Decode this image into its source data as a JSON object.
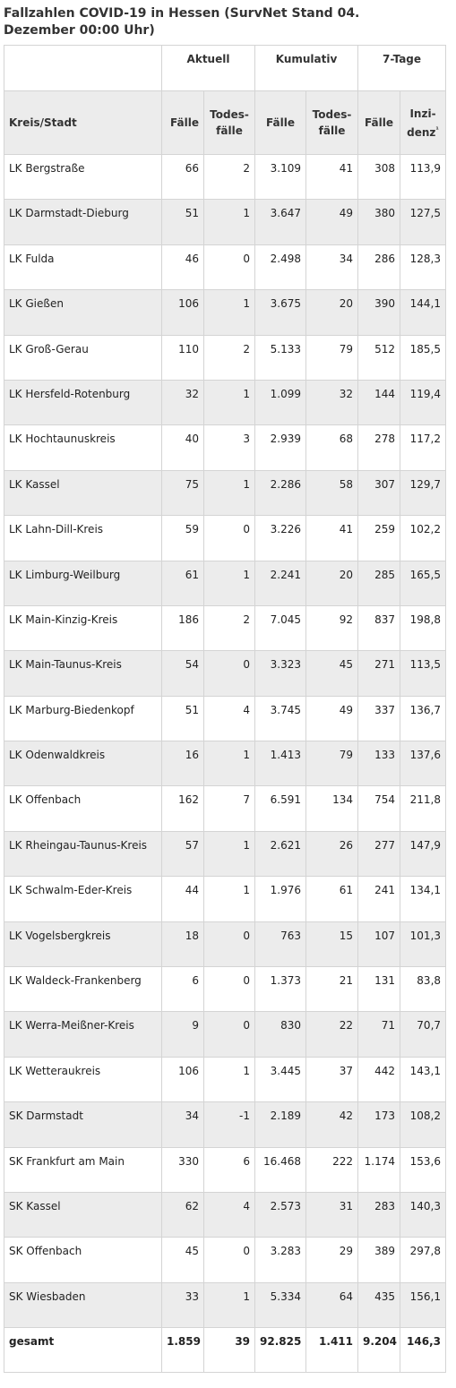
{
  "title": "Fallzahlen COVID-19 in Hessen (SurvNet Stand 04. Dezember 00:00 Uhr)",
  "groups": {
    "aktuell": "Aktuell",
    "kumulativ": "Kumulativ",
    "sieben_tage": "7-Tage"
  },
  "columns": {
    "kreis": "Kreis/Stadt",
    "faelle": "Fälle",
    "todes_1": "Todes-",
    "todes_2": "fälle",
    "inzi_1": "Inzi-",
    "inzi_2": "denz",
    "inzi_sup": "¹"
  },
  "rows": [
    [
      "LK Bergstraße",
      "66",
      "2",
      "3.109",
      "41",
      "308",
      "113,9"
    ],
    [
      "LK Darmstadt-Dieburg",
      "51",
      "1",
      "3.647",
      "49",
      "380",
      "127,5"
    ],
    [
      "LK Fulda",
      "46",
      "0",
      "2.498",
      "34",
      "286",
      "128,3"
    ],
    [
      "LK Gießen",
      "106",
      "1",
      "3.675",
      "20",
      "390",
      "144,1"
    ],
    [
      "LK Groß-Gerau",
      "110",
      "2",
      "5.133",
      "79",
      "512",
      "185,5"
    ],
    [
      "LK Hersfeld-Rotenburg",
      "32",
      "1",
      "1.099",
      "32",
      "144",
      "119,4"
    ],
    [
      "LK Hochtaunuskreis",
      "40",
      "3",
      "2.939",
      "68",
      "278",
      "117,2"
    ],
    [
      "LK Kassel",
      "75",
      "1",
      "2.286",
      "58",
      "307",
      "129,7"
    ],
    [
      "LK Lahn-Dill-Kreis",
      "59",
      "0",
      "3.226",
      "41",
      "259",
      "102,2"
    ],
    [
      "LK Limburg-Weilburg",
      "61",
      "1",
      "2.241",
      "20",
      "285",
      "165,5"
    ],
    [
      "LK Main-Kinzig-Kreis",
      "186",
      "2",
      "7.045",
      "92",
      "837",
      "198,8"
    ],
    [
      "LK Main-Taunus-Kreis",
      "54",
      "0",
      "3.323",
      "45",
      "271",
      "113,5"
    ],
    [
      "LK Marburg-Biedenkopf",
      "51",
      "4",
      "3.745",
      "49",
      "337",
      "136,7"
    ],
    [
      "LK Odenwaldkreis",
      "16",
      "1",
      "1.413",
      "79",
      "133",
      "137,6"
    ],
    [
      "LK Offenbach",
      "162",
      "7",
      "6.591",
      "134",
      "754",
      "211,8"
    ],
    [
      "LK Rheingau-Taunus-Kreis",
      "57",
      "1",
      "2.621",
      "26",
      "277",
      "147,9"
    ],
    [
      "LK Schwalm-Eder-Kreis",
      "44",
      "1",
      "1.976",
      "61",
      "241",
      "134,1"
    ],
    [
      "LK Vogelsbergkreis",
      "18",
      "0",
      "763",
      "15",
      "107",
      "101,3"
    ],
    [
      "LK Waldeck-Frankenberg",
      "6",
      "0",
      "1.373",
      "21",
      "131",
      "83,8"
    ],
    [
      "LK Werra-Meißner-Kreis",
      "9",
      "0",
      "830",
      "22",
      "71",
      "70,7"
    ],
    [
      "LK Wetteraukreis",
      "106",
      "1",
      "3.445",
      "37",
      "442",
      "143,1"
    ],
    [
      "SK Darmstadt",
      "34",
      "-1",
      "2.189",
      "42",
      "173",
      "108,2"
    ],
    [
      "SK Frankfurt am Main",
      "330",
      "6",
      "16.468",
      "222",
      "1.174",
      "153,6"
    ],
    [
      "SK Kassel",
      "62",
      "4",
      "2.573",
      "31",
      "283",
      "140,3"
    ],
    [
      "SK Offenbach",
      "45",
      "0",
      "3.283",
      "29",
      "389",
      "297,8"
    ],
    [
      "SK Wiesbaden",
      "33",
      "1",
      "5.334",
      "64",
      "435",
      "156,1"
    ]
  ],
  "total": [
    "gesamt",
    "1.859",
    "39",
    "92.825",
    "1.411",
    "9.204",
    "146,3"
  ]
}
